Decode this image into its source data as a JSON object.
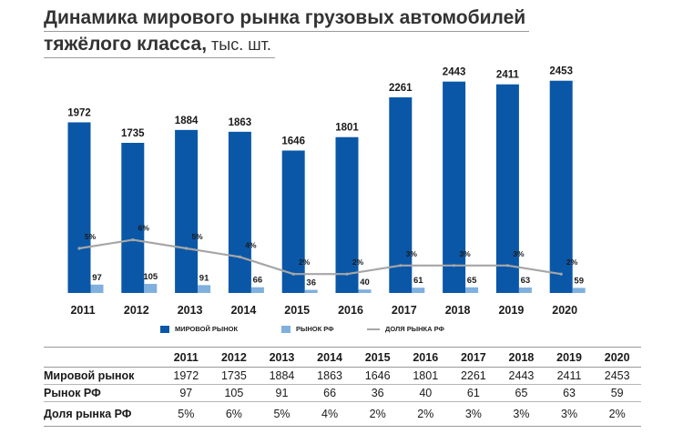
{
  "title": {
    "line1": "Динамика мирового рынка грузовых автомобилей",
    "line2_bold": "тяжёлого класса,",
    "line2_unit": " тыс. шт."
  },
  "colors": {
    "world": "#0a57a8",
    "rf": "#7fb0de",
    "share": "#a6a6a6"
  },
  "chart_data": {
    "type": "bar",
    "title": "Динамика мирового рынка грузовых автомобилей тяжёлого класса, тыс. шт.",
    "categories": [
      "2011",
      "2012",
      "2013",
      "2014",
      "2015",
      "2016",
      "2017",
      "2018",
      "2019",
      "2020"
    ],
    "series": [
      {
        "name": "МИРОВОЙ РЫНОК",
        "kind": "bar",
        "values": [
          1972,
          1735,
          1884,
          1863,
          1646,
          1801,
          2261,
          2443,
          2411,
          2453
        ]
      },
      {
        "name": "РЫНОК РФ",
        "kind": "bar",
        "values": [
          97,
          105,
          91,
          66,
          36,
          40,
          61,
          65,
          63,
          59
        ]
      },
      {
        "name": "ДОЛЯ РЫНКА РФ",
        "kind": "line",
        "values": [
          5,
          6,
          5,
          4,
          2,
          2,
          3,
          3,
          3,
          2
        ],
        "labels": [
          "5%",
          "6%",
          "5%",
          "4%",
          "2%",
          "2%",
          "3%",
          "3%",
          "3%",
          "2%"
        ]
      }
    ],
    "ylim": [
      0,
      2600
    ],
    "xlabel": "",
    "ylabel": ""
  },
  "legend": {
    "world": "МИРОВОЙ РЫНОК",
    "rf": "РЫНОК РФ",
    "share": "ДОЛЯ РЫНКА РФ"
  },
  "table": {
    "headers": [
      "",
      "2011",
      "2012",
      "2013",
      "2014",
      "2015",
      "2016",
      "2017",
      "2018",
      "2019",
      "2020"
    ],
    "rows": [
      {
        "label": "Мировой рынок",
        "values": [
          "1972",
          "1735",
          "1884",
          "1863",
          "1646",
          "1801",
          "2261",
          "2443",
          "2411",
          "2453"
        ]
      },
      {
        "label": "Рынок РФ",
        "values": [
          "97",
          "105",
          "91",
          "66",
          "36",
          "40",
          "61",
          "65",
          "63",
          "59"
        ]
      },
      {
        "label": "Доля рынка РФ",
        "values": [
          "5%",
          "6%",
          "5%",
          "4%",
          "2%",
          "2%",
          "3%",
          "3%",
          "3%",
          "2%"
        ]
      }
    ]
  }
}
